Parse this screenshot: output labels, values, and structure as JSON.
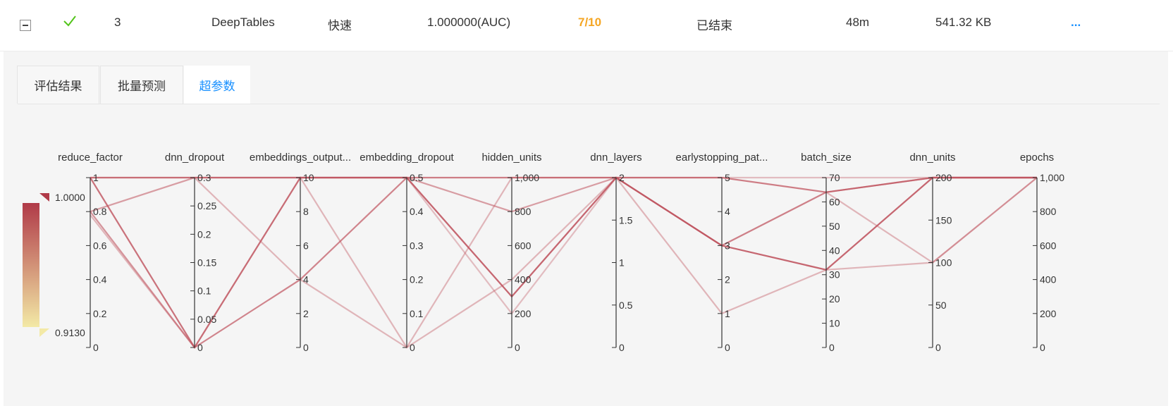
{
  "table_row": {
    "index": "3",
    "algorithm": "DeepTables",
    "mode": "快速",
    "score": "1.000000(AUC)",
    "progress": "7/10",
    "status": "已结束",
    "duration": "48m",
    "size": "541.32 KB",
    "more": "...",
    "progress_color": "#f5a623",
    "check_color": "#52c41a"
  },
  "tabs": [
    {
      "label": "评估结果",
      "active": false
    },
    {
      "label": "批量预测",
      "active": false
    },
    {
      "label": "超参数",
      "active": true
    }
  ],
  "legend": {
    "max_label": "1.0000",
    "min_label": "0.9130",
    "color_high": "#b03a48",
    "color_low": "#f3e9a6"
  },
  "chart_data": {
    "type": "parallel_coordinates",
    "line_color": "#c0545f",
    "dimensions": [
      {
        "name": "reduce_factor",
        "range": [
          0,
          1
        ],
        "ticks": [
          "0",
          "0.2",
          "0.4",
          "0.6",
          "0.8",
          "1"
        ]
      },
      {
        "name": "dnn_dropout",
        "range": [
          0,
          0.3
        ],
        "ticks": [
          "0",
          "0.05",
          "0.1",
          "0.15",
          "0.2",
          "0.25",
          "0.3"
        ]
      },
      {
        "name": "embeddings_output...",
        "range": [
          0,
          10
        ],
        "ticks": [
          "0",
          "2",
          "4",
          "6",
          "8",
          "10"
        ]
      },
      {
        "name": "embedding_dropout",
        "range": [
          0,
          0.5
        ],
        "ticks": [
          "0",
          "0.1",
          "0.2",
          "0.3",
          "0.4",
          "0.5"
        ]
      },
      {
        "name": "hidden_units",
        "range": [
          0,
          1000
        ],
        "ticks": [
          "0",
          "200",
          "400",
          "600",
          "800",
          "1,000"
        ]
      },
      {
        "name": "dnn_layers",
        "range": [
          0,
          2
        ],
        "ticks": [
          "0",
          "0.5",
          "1",
          "1.5",
          "2"
        ]
      },
      {
        "name": "earlystopping_pat...",
        "range": [
          0,
          5
        ],
        "ticks": [
          "0",
          "1",
          "2",
          "3",
          "4",
          "5"
        ]
      },
      {
        "name": "batch_size",
        "range": [
          0,
          70
        ],
        "ticks": [
          "0",
          "10",
          "20",
          "30",
          "40",
          "50",
          "60",
          "70"
        ]
      },
      {
        "name": "dnn_units",
        "range": [
          0,
          200
        ],
        "ticks": [
          "0",
          "50",
          "100",
          "150",
          "200"
        ]
      },
      {
        "name": "epochs",
        "range": [
          0,
          1000
        ],
        "ticks": [
          "0",
          "200",
          "400",
          "600",
          "800",
          "1,000"
        ]
      }
    ],
    "lines": [
      {
        "values": [
          1,
          0.3,
          10,
          0.5,
          1000,
          2,
          5,
          64,
          200,
          1000
        ],
        "opacity": 0.75
      },
      {
        "values": [
          0.8,
          0.3,
          10,
          0.5,
          800,
          2,
          3,
          64,
          200,
          1000
        ],
        "opacity": 0.55
      },
      {
        "values": [
          1,
          0,
          4,
          0.5,
          300,
          2,
          3,
          32,
          200,
          1000
        ],
        "opacity": 0.7
      },
      {
        "values": [
          0.78,
          0,
          10,
          0,
          400,
          2,
          1,
          32,
          100,
          1000
        ],
        "opacity": 0.4
      },
      {
        "values": [
          1,
          0.3,
          4,
          0,
          1000,
          2,
          3,
          64,
          100,
          1000
        ],
        "opacity": 0.4
      },
      {
        "values": [
          1,
          0,
          10,
          0.5,
          200,
          2,
          5,
          70,
          200,
          1000
        ],
        "opacity": 0.35
      },
      {
        "values": [
          0.8,
          0,
          10,
          0.5,
          300,
          2,
          3,
          32,
          200,
          1000
        ],
        "opacity": 0.6
      }
    ]
  }
}
